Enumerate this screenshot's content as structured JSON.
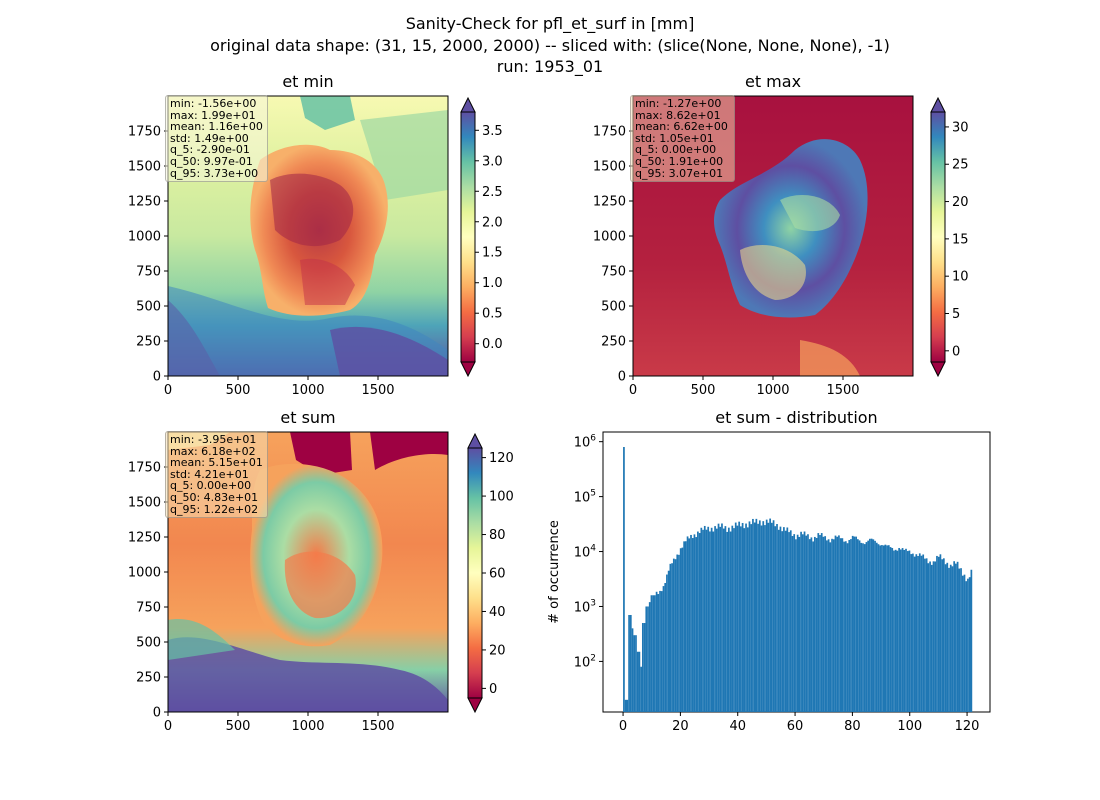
{
  "figure": {
    "title_lines": [
      "Sanity-Check for pfl_et_surf in [mm]",
      "original data shape: (31, 15, 2000, 2000) -- sliced with: (slice(None, None, None), -1)",
      "run: 1953_01"
    ]
  },
  "colors": {
    "histogram_bar": "#1f77b4",
    "colormap": "Spectral",
    "stats_box_background": "#f5deb3"
  },
  "chart_data": [
    {
      "type": "heatmap",
      "title": "et min",
      "colormap": "Spectral",
      "xlim": [
        0,
        2000
      ],
      "ylim": [
        0,
        2000
      ],
      "x_ticks": [
        "0",
        "500",
        "1000",
        "1500"
      ],
      "y_ticks": [
        "0",
        "250",
        "500",
        "750",
        "1000",
        "1250",
        "1500",
        "1750"
      ],
      "colorbar": {
        "range": [
          -0.3,
          3.8
        ],
        "ticks": [
          "0.0",
          "0.5",
          "1.0",
          "1.5",
          "2.0",
          "2.5",
          "3.0",
          "3.5"
        ],
        "tick_values": [
          0.0,
          0.5,
          1.0,
          1.5,
          2.0,
          2.5,
          3.0,
          3.5
        ],
        "extend": "both"
      },
      "stats": [
        "min: -1.56e+00",
        "max: 1.99e+01",
        "mean: 1.16e+00",
        "std: 1.49e+00",
        "q_5: -2.90e-01",
        "q_50: 9.97e-01",
        "q_95: 3.73e+00"
      ]
    },
    {
      "type": "heatmap",
      "title": "et max",
      "colormap": "Spectral",
      "xlim": [
        0,
        2000
      ],
      "ylim": [
        0,
        2000
      ],
      "x_ticks": [
        "0",
        "500",
        "1000",
        "1500"
      ],
      "y_ticks": [
        "0",
        "250",
        "500",
        "750",
        "1000",
        "1250",
        "1500",
        "1750"
      ],
      "colorbar": {
        "range": [
          -1.5,
          32
        ],
        "ticks": [
          "0",
          "5",
          "10",
          "15",
          "20",
          "25",
          "30"
        ],
        "tick_values": [
          0,
          5,
          10,
          15,
          20,
          25,
          30
        ],
        "extend": "both"
      },
      "stats": [
        "min: -1.27e+00",
        "max: 8.62e+01",
        "mean: 6.62e+00",
        "std: 1.05e+01",
        "q_5: 0.00e+00",
        "q_50: 1.91e+00",
        "q_95: 3.07e+01"
      ]
    },
    {
      "type": "heatmap",
      "title": "et sum",
      "colormap": "Spectral",
      "xlim": [
        0,
        2000
      ],
      "ylim": [
        0,
        2000
      ],
      "x_ticks": [
        "0",
        "500",
        "1000",
        "1500"
      ],
      "y_ticks": [
        "0",
        "250",
        "500",
        "750",
        "1000",
        "1250",
        "1500",
        "1750"
      ],
      "colorbar": {
        "range": [
          -5,
          125
        ],
        "ticks": [
          "0",
          "20",
          "40",
          "60",
          "80",
          "100",
          "120"
        ],
        "tick_values": [
          0,
          20,
          40,
          60,
          80,
          100,
          120
        ],
        "extend": "both"
      },
      "stats": [
        "min: -3.95e+01",
        "max: 6.18e+02",
        "mean: 5.15e+01",
        "std: 4.21e+01",
        "q_5: 0.00e+00",
        "q_50: 4.83e+01",
        "q_95: 1.22e+02"
      ]
    },
    {
      "type": "bar",
      "title": "et sum - distribution",
      "xlabel": "",
      "ylabel": "# of occurrence",
      "yscale": "log",
      "xlim": [
        -7,
        128
      ],
      "ylim": [
        12,
        1500000
      ],
      "x_ticks": [
        0,
        20,
        40,
        60,
        80,
        100,
        120
      ],
      "y_ticks": [
        "10^2",
        "10^3",
        "10^4",
        "10^5",
        "10^6"
      ],
      "y_tick_values": [
        100,
        1000,
        10000,
        100000,
        1000000
      ],
      "x": [
        0,
        1,
        2,
        3,
        4,
        5,
        6,
        7,
        8,
        9,
        10,
        12,
        14,
        16,
        18,
        20,
        22,
        24,
        26,
        28,
        30,
        32,
        34,
        36,
        38,
        40,
        42,
        44,
        46,
        48,
        50,
        52,
        54,
        56,
        58,
        60,
        62,
        64,
        66,
        68,
        70,
        72,
        74,
        76,
        78,
        80,
        82,
        84,
        86,
        88,
        90,
        92,
        94,
        96,
        98,
        100,
        102,
        104,
        106,
        108,
        110,
        112,
        114,
        116,
        118,
        120,
        121
      ],
      "values": [
        800000,
        20,
        700,
        400,
        300,
        150,
        80,
        500,
        1000,
        1200,
        1600,
        1800,
        2500,
        5000,
        8000,
        12000,
        16000,
        20000,
        23000,
        25000,
        27000,
        28000,
        28000,
        27000,
        28000,
        30000,
        32000,
        33000,
        34000,
        36000,
        35000,
        33000,
        30000,
        25000,
        22000,
        20000,
        21000,
        19000,
        18000,
        20000,
        18000,
        17000,
        18000,
        17000,
        16000,
        18000,
        16000,
        15000,
        16000,
        15000,
        14000,
        12000,
        11000,
        12000,
        10000,
        10000,
        9000,
        8000,
        7000,
        6500,
        8000,
        7000,
        5500,
        6000,
        4500,
        3000,
        4000
      ]
    }
  ]
}
